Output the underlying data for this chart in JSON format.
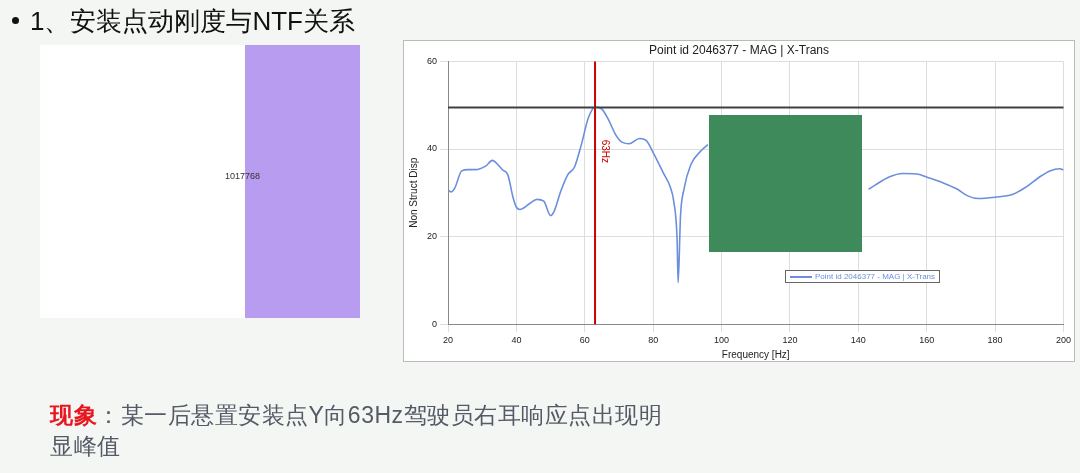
{
  "chart_data": {
    "type": "line",
    "title": "Point id 2046377 - MAG | X-Trans",
    "xlabel": "Frequency [Hz]",
    "ylabel": "Non Struct Disp",
    "x": [
      20,
      21,
      22,
      24,
      26,
      28,
      31,
      33,
      34,
      36,
      37.5,
      39,
      40,
      41,
      44,
      46,
      48,
      50,
      51,
      53,
      55,
      57,
      59,
      61,
      63,
      65,
      67,
      69,
      71,
      73,
      76,
      78,
      80,
      83,
      85,
      86,
      87,
      87.3,
      88,
      89,
      91,
      94,
      96,
      120,
      143,
      145,
      149,
      153,
      157,
      161,
      165,
      169,
      172,
      175,
      180,
      185,
      189,
      193,
      196,
      199,
      200
    ],
    "series": [
      {
        "name": "Point id 2046377 - MAG | X-Trans",
        "color": "#6b8fdc",
        "values": [
          30.6,
          30.2,
          31.1,
          35,
          35.3,
          35.3,
          36.1,
          37.4,
          36.9,
          35.2,
          34.1,
          29,
          26.7,
          26.2,
          27.6,
          28.5,
          28.1,
          24.8,
          25.7,
          30.4,
          34.1,
          35.9,
          41,
          47,
          49.6,
          49.1,
          46.6,
          43.3,
          41.5,
          41.2,
          42.4,
          41.9,
          39.2,
          34.5,
          31.3,
          28.1,
          19.3,
          9.5,
          24.8,
          30.8,
          36.4,
          39.6,
          41,
          null,
          30.8,
          31.8,
          33.6,
          34.4,
          34.3,
          33.3,
          32.2,
          30.8,
          29.3,
          28.7,
          29,
          29.6,
          31.3,
          33.6,
          35,
          35.5,
          35.2
        ]
      }
    ],
    "xlim": [
      20,
      200
    ],
    "xticks": [
      20,
      40,
      60,
      80,
      100,
      120,
      140,
      160,
      180,
      200
    ],
    "ylim": [
      0,
      60
    ],
    "yticks": [
      0,
      20,
      40,
      60
    ],
    "grid": true,
    "legend": "bottom",
    "marker": "none",
    "line_style": "solid",
    "ref_lines": [
      {
        "axis": "x",
        "value": 63,
        "label": "63Hz",
        "color": "#cc0000"
      },
      {
        "axis": "y",
        "value": 49.5,
        "color": "#404040"
      }
    ],
    "annotations": [
      "1、安装点动刚度与NTF关系",
      "现象",
      "：某一后悬置安装点Y向63Hz驾驶员右耳响应点出现明显峰值",
      "1017768"
    ]
  }
}
